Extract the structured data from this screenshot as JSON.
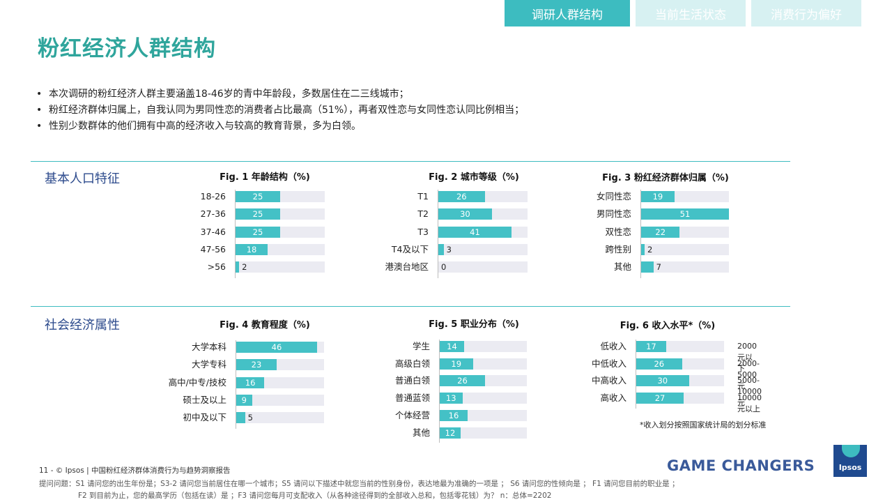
{
  "tabs": [
    {
      "label": "调研人群结构",
      "active": true
    },
    {
      "label": "当前生活状态",
      "active": false
    },
    {
      "label": "消费行为偏好",
      "active": false
    }
  ],
  "page_title": "粉红经济人群结构",
  "bullets": [
    "本次调研的粉红经济人群主要涵盖18-46岁的青中年龄段，多数居住在二三线城市；",
    "粉红经济群体归属上，自我认同为男同性恋的消费者占比最高（51%），再者双性恋与女同性恋认同比例相当；",
    "性别少数群体的他们拥有中高的经济收入与较高的教育背景，多为白领。"
  ],
  "sections": {
    "basic": "基本人口特征",
    "socio": "社会经济属性"
  },
  "note": "*收入划分按照国家统计局的划分标准",
  "footer": {
    "line1": "11  -  © Ipsos  |  中国粉红经济群体消费行为与趋势洞察报告",
    "line2": "提问问题：S1 请问您的出生年份是；S3-2 请问您当前居住在哪一个城市；S5 请问以下描述中就您当前的性别身份，表达地最为准确的一项是 ； S6 请问您的性倾向是 ； F1 请问您目前的职业是 ；",
    "line3": "F2 到目前为止，您的最高学历（包括在读）是 ；F3 请问您每月可支配收入（从各种途径得到的全部收入总和，包括零花钱）为？ n：总体=2202"
  },
  "brand": {
    "tagline": "GAME CHANGERS",
    "logo": "Ipsos"
  },
  "colors": {
    "accent": "#3dbcc0",
    "bar": "#44c1c6",
    "track": "#ebebf2",
    "title": "#2fa59c",
    "section": "#2c4a8c"
  },
  "chart_data": [
    {
      "id": "fig1",
      "type": "bar",
      "title": "Fig. 1  年龄结构（%)",
      "categories": [
        "18-26",
        "27-36",
        "37-46",
        "47-56",
        ">56"
      ],
      "values": [
        25,
        25,
        25,
        18,
        2
      ],
      "xlim": [
        0,
        100
      ]
    },
    {
      "id": "fig2",
      "type": "bar",
      "title": "Fig. 2 城市等级（%)",
      "categories": [
        "T1",
        "T2",
        "T3",
        "T4及以下",
        "港澳台地区"
      ],
      "values": [
        26,
        30,
        41,
        3,
        0
      ],
      "xlim": [
        0,
        100
      ]
    },
    {
      "id": "fig3",
      "type": "bar",
      "title": "Fig. 3 粉红经济群体归属（%)",
      "categories": [
        "女同性恋",
        "男同性恋",
        "双性恋",
        "跨性别",
        "其他"
      ],
      "values": [
        19,
        51,
        22,
        2,
        7
      ],
      "xlim": [
        0,
        100
      ]
    },
    {
      "id": "fig4",
      "type": "bar",
      "title": "Fig. 4  教育程度（%)",
      "categories": [
        "大学本科",
        "大学专科",
        "高中/中专/技校",
        "硕士及以上",
        "初中及以下"
      ],
      "values": [
        46,
        23,
        16,
        9,
        5
      ],
      "xlim": [
        0,
        100
      ]
    },
    {
      "id": "fig5",
      "type": "bar",
      "title": "Fig. 5  职业分布（%)",
      "categories": [
        "学生",
        "高级白领",
        "普通白领",
        "普通蓝领",
        "个体经营",
        "其他"
      ],
      "values": [
        14,
        19,
        26,
        13,
        16,
        12
      ],
      "xlim": [
        0,
        100
      ]
    },
    {
      "id": "fig6",
      "type": "bar",
      "title": "Fig. 6  收入水平*（%)",
      "categories": [
        "低收入",
        "中低收入",
        "中高收入",
        "高收入"
      ],
      "values": [
        17,
        26,
        30,
        27
      ],
      "xlim": [
        0,
        100
      ],
      "ranges": [
        "2000元以下",
        "2000-5000元",
        "5000-10000元",
        "10000元以上"
      ]
    }
  ]
}
